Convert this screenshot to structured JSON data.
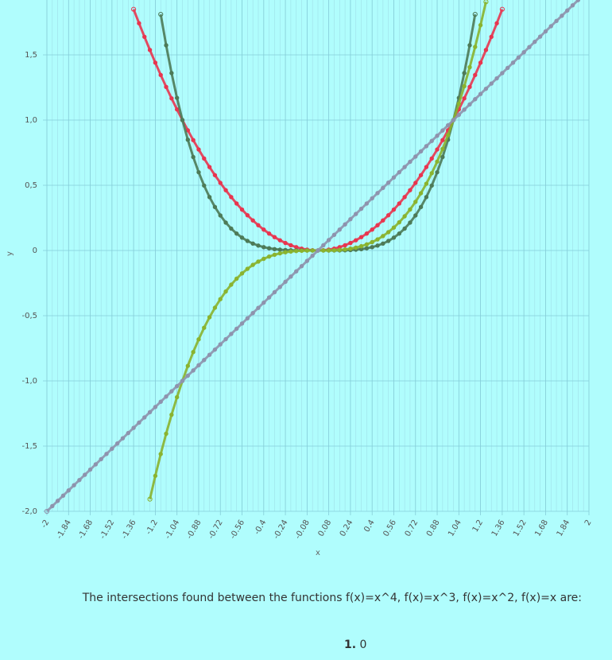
{
  "chart_data": {
    "type": "line",
    "xlabel": "x",
    "ylabel": "y",
    "xlim": [
      -2,
      2
    ],
    "ylim": [
      -2,
      1.8
    ],
    "x_ticks": [
      "-2",
      "-1.84",
      "-1.68",
      "-1.52",
      "-1.36",
      "-1.2",
      "-1.04",
      "-0.88",
      "-0.72",
      "-0.56",
      "-0.4",
      "-0.24",
      "-0.08",
      "0.08",
      "0.24",
      "0.4",
      "0.56",
      "0.72",
      "0.88",
      "1.04",
      "1.2",
      "1.36",
      "1.52",
      "1.68",
      "1.84",
      "2"
    ],
    "y_ticks": [
      {
        "value": -2.0,
        "label": "-2,0"
      },
      {
        "value": -1.5,
        "label": "-1,5"
      },
      {
        "value": -1.0,
        "label": "-1,0"
      },
      {
        "value": -0.5,
        "label": "-0,5"
      },
      {
        "value": 0,
        "label": "0"
      },
      {
        "value": 0.5,
        "label": "0,5"
      },
      {
        "value": 1.0,
        "label": "1,0"
      },
      {
        "value": 1.5,
        "label": "1,5"
      }
    ],
    "series": [
      {
        "function": "x^2",
        "color": "#e8354f",
        "x_range": [
          -1.36,
          1.36
        ],
        "step": 0.04
      },
      {
        "function": "x^4",
        "color": "#4d7a57",
        "x_range": [
          -1.16,
          1.16
        ],
        "step": 0.04
      },
      {
        "function": "x^3",
        "color": "#8ab32e",
        "x_range": [
          -1.24,
          1.24
        ],
        "step": 0.04
      },
      {
        "function": "x",
        "color": "#8e93ad",
        "x_range": [
          -2,
          2
        ],
        "step": 0.04
      }
    ],
    "grid": true,
    "legend": "none"
  },
  "result": {
    "text": "The intersections found between the functions f(x)=x^4, f(x)=x^3, f(x)=x^2, f(x)=x are:",
    "items": [
      {
        "index": "1.",
        "value": "0"
      }
    ]
  }
}
